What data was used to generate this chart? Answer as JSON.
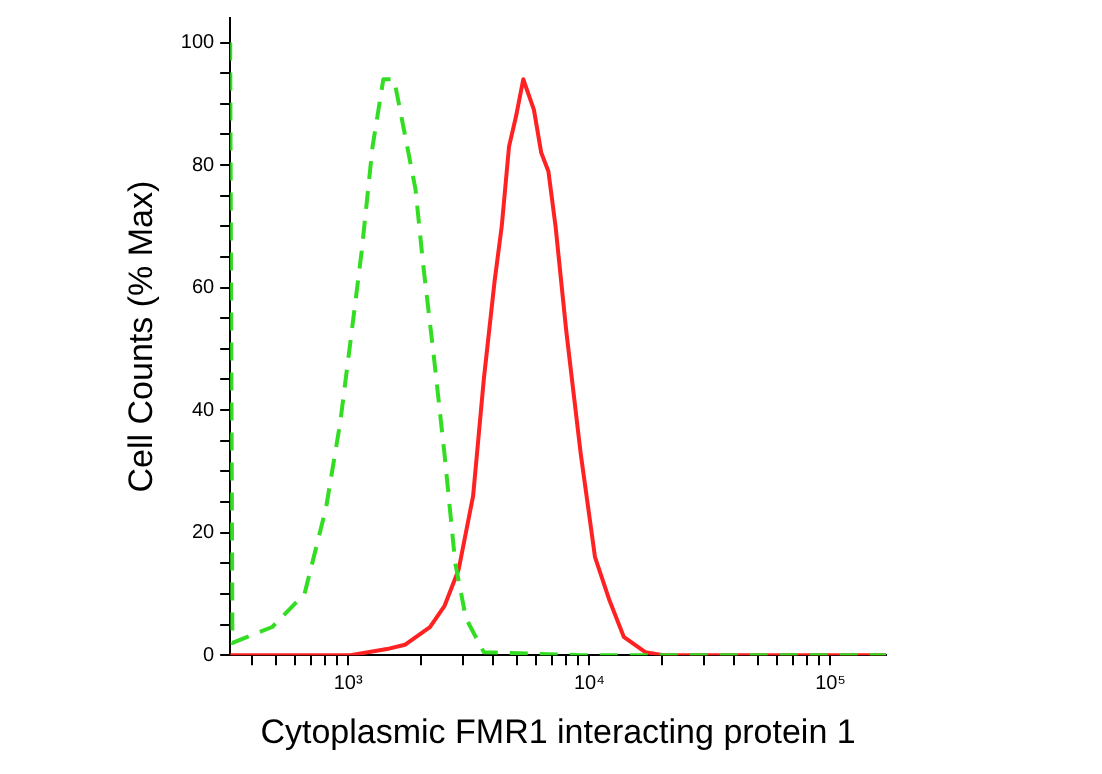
{
  "chart_data": {
    "type": "line",
    "xlabel": "Cytoplasmic FMR1 interacting protein 1",
    "ylabel": "Cell Counts (% Max)",
    "log": "x",
    "grid": false,
    "legend": false,
    "marker": "none",
    "xlim": [
      324,
      170000
    ],
    "ylim": [
      0,
      104
    ],
    "xticks": [
      {
        "value": 400,
        "label": null
      },
      {
        "value": 500,
        "label": null
      },
      {
        "value": 600,
        "label": null
      },
      {
        "value": 700,
        "label": null
      },
      {
        "value": 800,
        "label": null
      },
      {
        "value": 900,
        "label": null
      },
      {
        "value": 1000,
        "label": "10³"
      },
      {
        "value": 2000,
        "label": null
      },
      {
        "value": 3000,
        "label": null
      },
      {
        "value": 4000,
        "label": null
      },
      {
        "value": 5000,
        "label": null
      },
      {
        "value": 6000,
        "label": null
      },
      {
        "value": 7000,
        "label": null
      },
      {
        "value": 8000,
        "label": null
      },
      {
        "value": 9000,
        "label": null
      },
      {
        "value": 10000,
        "label": "10⁴"
      },
      {
        "value": 20000,
        "label": null
      },
      {
        "value": 30000,
        "label": null
      },
      {
        "value": 40000,
        "label": null
      },
      {
        "value": 50000,
        "label": null
      },
      {
        "value": 60000,
        "label": null
      },
      {
        "value": 70000,
        "label": null
      },
      {
        "value": 80000,
        "label": null
      },
      {
        "value": 90000,
        "label": null
      },
      {
        "value": 100000,
        "label": "10⁵"
      }
    ],
    "yticks": [
      0,
      {
        "value": 5,
        "label": null
      },
      {
        "value": 10,
        "label": null
      },
      {
        "value": 15,
        "label": null
      },
      20,
      {
        "value": 25,
        "label": null
      },
      {
        "value": 30,
        "label": null
      },
      {
        "value": 35,
        "label": null
      },
      40,
      {
        "value": 45,
        "label": null
      },
      {
        "value": 50,
        "label": null
      },
      {
        "value": 55,
        "label": null
      },
      60,
      {
        "value": 65,
        "label": null
      },
      {
        "value": 70,
        "label": null
      },
      {
        "value": 75,
        "label": null
      },
      80,
      {
        "value": 85,
        "label": null
      },
      {
        "value": 90,
        "label": null
      },
      {
        "value": 95,
        "label": null
      },
      100
    ],
    "series": [
      {
        "color": "#33dd22",
        "line_style": "dashed",
        "x": [
          324,
          331,
          484,
          659,
          809,
          927,
          1028,
          1138,
          1262,
          1399,
          1550,
          1718,
          1903,
          2043,
          2262,
          2506,
          2780,
          3080,
          3651,
          9200,
          170000
        ],
        "values": [
          100,
          2,
          4.6,
          10,
          24,
          38,
          52,
          66,
          83,
          94,
          94,
          85,
          76,
          64,
          49,
          33,
          15,
          6,
          0.5,
          0,
          0
        ]
      },
      {
        "color": "#ff2222",
        "line_style": "solid",
        "x": [
          324,
          1021,
          1448,
          1718,
          2183,
          2506,
          2872,
          3297,
          3651,
          4046,
          4333,
          4645,
          4970,
          5322,
          5894,
          6320,
          6765,
          7244,
          8020,
          9204,
          10560,
          12110,
          13890,
          17070,
          20230,
          170000
        ],
        "values": [
          0,
          0,
          1,
          1.7,
          4.6,
          8,
          14,
          26,
          45,
          61,
          70,
          83,
          88,
          94,
          89,
          82,
          79,
          70,
          53,
          33,
          16,
          9,
          3,
          0.5,
          0,
          0
        ]
      }
    ]
  }
}
